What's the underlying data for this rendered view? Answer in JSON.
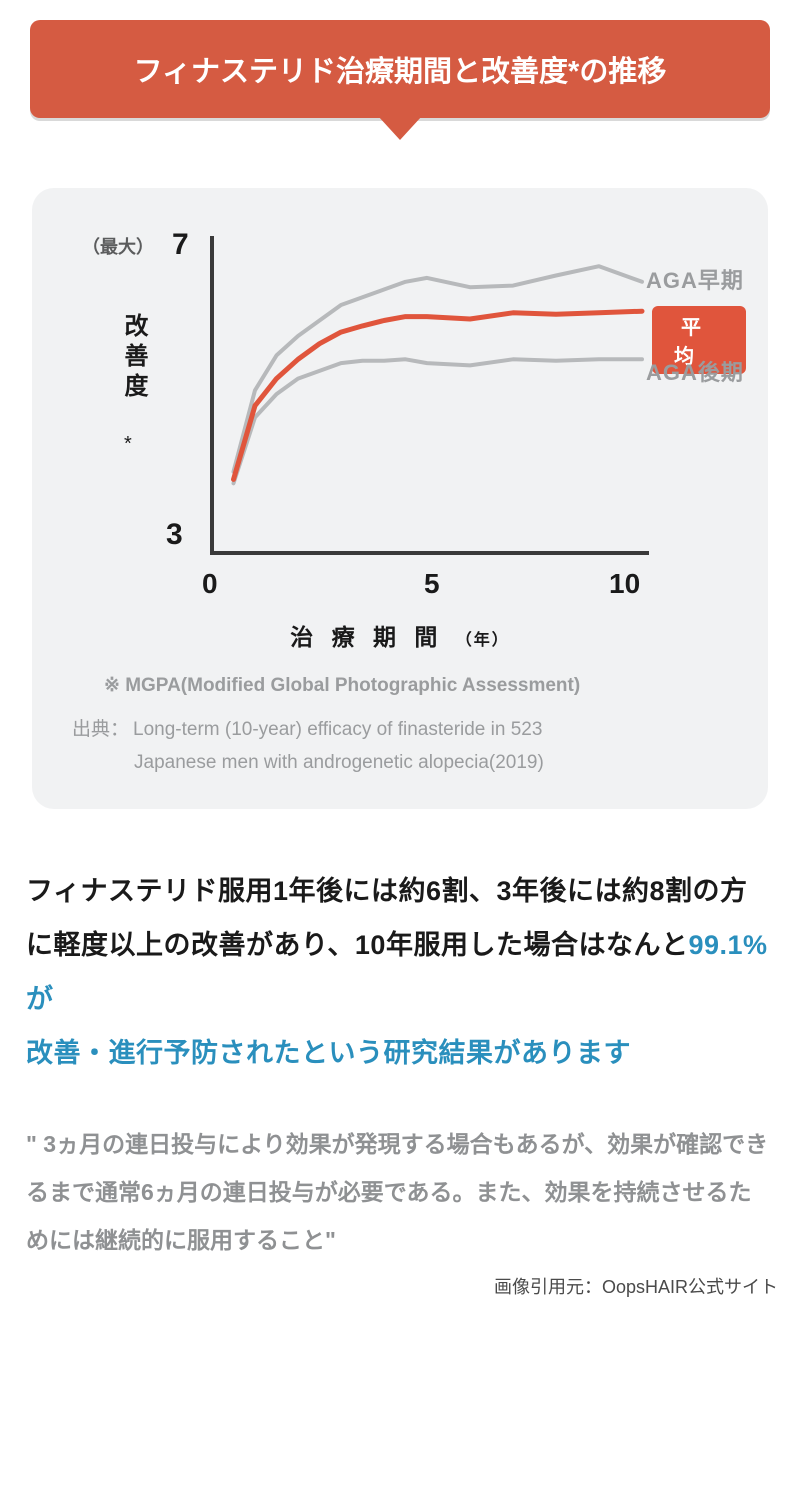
{
  "header": {
    "title": "フィナステリド治療期間と改善度*の推移"
  },
  "chart": {
    "type": "line",
    "background_color": "#f1f2f3",
    "plot_background": "#f1f2f3",
    "axis_color": "#3a3a3a",
    "axis_width": 4,
    "y_axis": {
      "label": "改善度",
      "label_star": "*",
      "max_label": "（最大）",
      "max_value": "7",
      "min_value": "3",
      "ylim": [
        3,
        7
      ]
    },
    "x_axis": {
      "label": "治 療 期 間",
      "label_unit": "（年）",
      "ticks": [
        "0",
        "5",
        "10"
      ],
      "xlim": [
        0,
        10
      ]
    },
    "series": {
      "early": {
        "label": "AGA早期",
        "color": "#b7b9bb",
        "width": 4,
        "points": [
          [
            0.5,
            4.05
          ],
          [
            1,
            5.1
          ],
          [
            1.5,
            5.55
          ],
          [
            2,
            5.8
          ],
          [
            2.5,
            6.0
          ],
          [
            3,
            6.2
          ],
          [
            3.5,
            6.3
          ],
          [
            4,
            6.4
          ],
          [
            4.5,
            6.5
          ],
          [
            5,
            6.55
          ],
          [
            6,
            6.43
          ],
          [
            7,
            6.45
          ],
          [
            8,
            6.58
          ],
          [
            9,
            6.7
          ],
          [
            10,
            6.5
          ]
        ]
      },
      "avg": {
        "label": "平均",
        "color": "#e0553c",
        "width": 5,
        "points": [
          [
            0.5,
            3.95
          ],
          [
            1,
            4.9
          ],
          [
            1.5,
            5.25
          ],
          [
            2,
            5.5
          ],
          [
            2.5,
            5.7
          ],
          [
            3,
            5.85
          ],
          [
            3.5,
            5.93
          ],
          [
            4,
            6.0
          ],
          [
            4.5,
            6.05
          ],
          [
            5,
            6.05
          ],
          [
            6,
            6.02
          ],
          [
            7,
            6.1
          ],
          [
            8,
            6.08
          ],
          [
            9,
            6.1
          ],
          [
            10,
            6.12
          ]
        ]
      },
      "late": {
        "label": "AGA後期",
        "color": "#b7b9bb",
        "width": 4,
        "points": [
          [
            0.5,
            3.9
          ],
          [
            1,
            4.75
          ],
          [
            1.5,
            5.05
          ],
          [
            2,
            5.25
          ],
          [
            2.5,
            5.35
          ],
          [
            3,
            5.45
          ],
          [
            3.5,
            5.48
          ],
          [
            4,
            5.48
          ],
          [
            4.5,
            5.5
          ],
          [
            5,
            5.45
          ],
          [
            6,
            5.42
          ],
          [
            7,
            5.5
          ],
          [
            8,
            5.48
          ],
          [
            9,
            5.5
          ],
          [
            10,
            5.5
          ]
        ]
      }
    },
    "footnote": "※ MGPA(Modified Global Photographic Assessment)",
    "source_label": "出典：",
    "source_line1": "Long-term (10-year) efficacy of finasteride in 523",
    "source_line2": "Japanese men with androgenetic alopecia(2019)"
  },
  "body": {
    "part1": "フィナステリド服用1年後には約6割、3年後には約8割の方に軽度以上の改善があり、10年服用した場合はなんと",
    "blue1": "99.1%が",
    "br": "",
    "blue2": "改善・進行予防されたという研究結果があります"
  },
  "quote": {
    "text": "\" 3ヵ月の連日投与により効果が発現する場合もあるが、効果が確認できるまで通常6ヵ月の連日投与が必要である。また、効果を持続させるためには継続的に服用すること\""
  },
  "credit": {
    "text": "画像引用元：OopsHAIR公式サイト"
  }
}
